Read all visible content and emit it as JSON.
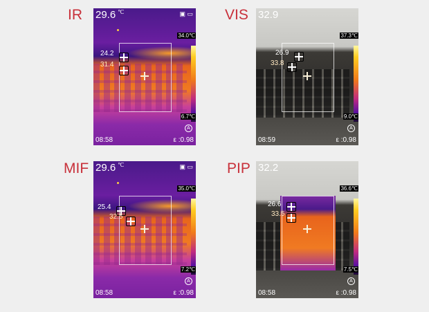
{
  "panels": [
    {
      "mode": "IR",
      "type": "thermal",
      "readout": "29.6",
      "unit": "℃",
      "max": "34.0℃",
      "min": "6.7℃",
      "cold_label": "24.2",
      "hot_label": "31.4",
      "time": "08:58",
      "emissivity": "ε :0.98",
      "auto": "A",
      "status": "▣ ▭"
    },
    {
      "mode": "VIS",
      "type": "visual",
      "readout": "32.9",
      "unit": "",
      "max": "37.3℃",
      "min": "9.0℃",
      "cold_label": "26.9",
      "hot_label": "33.8",
      "time": "08:59",
      "emissivity": "ε :0.98",
      "auto": "A",
      "status": ""
    },
    {
      "mode": "MIF",
      "type": "thermal",
      "readout": "29.6",
      "unit": "℃",
      "max": "35.0℃",
      "min": "7.2℃",
      "cold_label": "25.4",
      "hot_label": "32.5",
      "time": "08:58",
      "emissivity": "ε :0.98",
      "auto": "A",
      "status": "▣ ▭"
    },
    {
      "mode": "PIP",
      "type": "pip",
      "readout": "32.2",
      "unit": "",
      "max": "36.6℃",
      "min": "7.5℃",
      "cold_label": "26.6",
      "hot_label": "33.5",
      "time": "08:58",
      "emissivity": "ε :0.98",
      "auto": "A",
      "status": ""
    }
  ],
  "colors": {
    "mode_label": "#c8303a",
    "background": "#efefef"
  }
}
